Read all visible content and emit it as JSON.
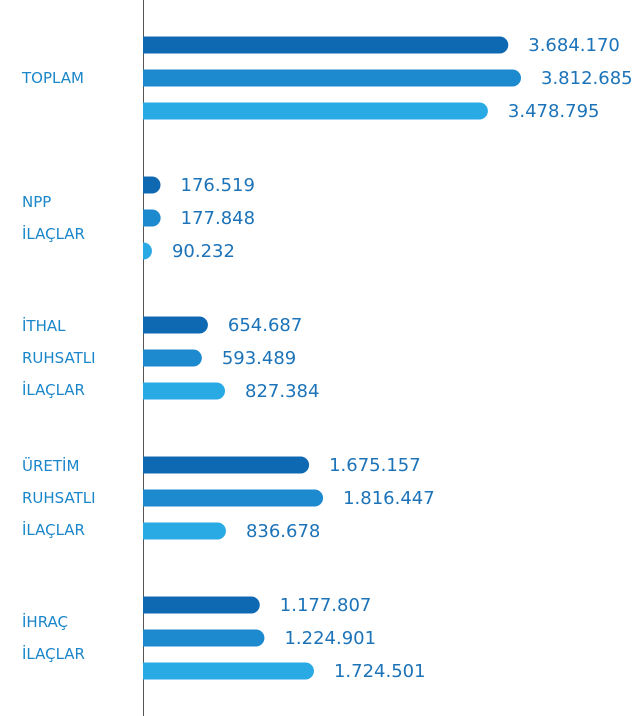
{
  "chart_data": {
    "type": "bar",
    "orientation": "horizontal",
    "categories": [
      "TOPLAM",
      "NPP İLAÇLAR",
      "İTHAL RUHSATLI İLAÇLAR",
      "ÜRETİM RUHSATLI İLAÇLAR",
      "İHRAÇ İLAÇLAR"
    ],
    "series": [
      {
        "color": "#0f68b2",
        "values": [
          3684170,
          176519,
          654687,
          1675157,
          1177807
        ],
        "value_labels": [
          "3.684.170",
          "176.519",
          "654.687",
          "1.675.157",
          "1.177.807"
        ]
      },
      {
        "color": "#1d8ad0",
        "values": [
          3812685,
          177848,
          593489,
          1816447,
          1224901
        ],
        "value_labels": [
          "3.812.685",
          "177.848",
          "593.489",
          "1.816.447",
          "1.224.901"
        ]
      },
      {
        "color": "#2aaae4",
        "values": [
          3478795,
          90232,
          827384,
          836678,
          1724501
        ],
        "value_labels": [
          "3.478.795",
          "90.232",
          "827.384",
          "836.678",
          "1.724.501"
        ]
      }
    ]
  }
}
